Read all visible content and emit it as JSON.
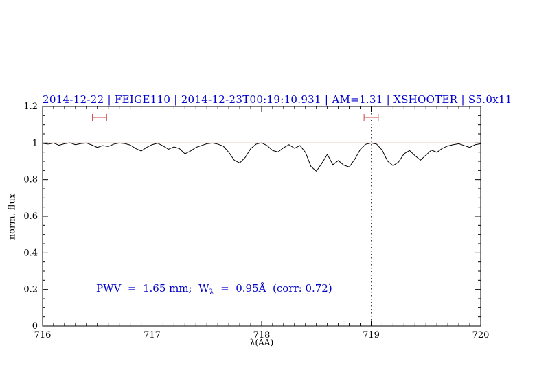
{
  "title": "2014-12-22 | FEIGE110 | 2014-12-23T00:19:10.931 | AM=1.31 | XSHOOTER | S5.0x11",
  "annotation": {
    "prefix": "PWV  =  1.65 mm;  W",
    "sub": "λ",
    "suffix": "  =  0.95Å  (corr: 0.72)"
  },
  "axes": {
    "xlabel": "λ(AA)",
    "ylabel": "norm. flux",
    "x_tick_labels": [
      "716",
      "717",
      "718",
      "719",
      "720"
    ],
    "y_tick_labels": [
      "0",
      "0.2",
      "0.4",
      "0.6",
      "0.8",
      "1",
      "1.2"
    ]
  },
  "colors": {
    "title_blue": "#0000cc",
    "spectrum_black": "#000000",
    "reference_red": "#b03030",
    "marker_red": "#cc4444",
    "dotted_line": "#404040"
  },
  "chart_data": {
    "type": "line",
    "title": "2014-12-22 | FEIGE110 | 2014-12-23T00:19:10.931 | AM=1.31 | XSHOOTER | S5.0x11",
    "xlabel": "λ(AA)",
    "ylabel": "norm. flux",
    "xlim": [
      716,
      720
    ],
    "ylim": [
      0,
      1.2
    ],
    "xticks": [
      716,
      717,
      718,
      719,
      720
    ],
    "yticks": [
      0,
      0.2,
      0.4,
      0.6,
      0.8,
      1,
      1.2
    ],
    "x_minor_step": 0.1,
    "y_minor_step": 0.05,
    "grid": false,
    "legend": "none",
    "series": [
      {
        "name": "normalized spectrum",
        "color": "#000000",
        "x_start": 716.0,
        "x_step": 0.05,
        "y": [
          0.998,
          0.994,
          1.0,
          0.988,
          0.996,
          1.001,
          0.991,
          0.997,
          1.0,
          0.989,
          0.976,
          0.986,
          0.981,
          0.994,
          1.0,
          0.997,
          0.989,
          0.97,
          0.956,
          0.976,
          0.991,
          0.999,
          0.984,
          0.966,
          0.979,
          0.969,
          0.941,
          0.956,
          0.976,
          0.986,
          0.996,
          1.0,
          0.994,
          0.983,
          0.949,
          0.906,
          0.891,
          0.921,
          0.969,
          0.994,
          1.001,
          0.986,
          0.959,
          0.951,
          0.974,
          0.991,
          0.971,
          0.986,
          0.949,
          0.872,
          0.846,
          0.889,
          0.938,
          0.881,
          0.904,
          0.879,
          0.869,
          0.911,
          0.964,
          0.993,
          1.0,
          0.994,
          0.961,
          0.901,
          0.876,
          0.896,
          0.941,
          0.959,
          0.931,
          0.906,
          0.934,
          0.961,
          0.949,
          0.971,
          0.984,
          0.991,
          0.996,
          0.986,
          0.976,
          0.991,
          0.996
        ]
      }
    ],
    "reference_line": {
      "y": 1.0,
      "color": "#b03030"
    },
    "vlines": [
      {
        "x": 717,
        "style": "dotted",
        "color": "#404040"
      },
      {
        "x": 719,
        "style": "dotted",
        "color": "#404040"
      }
    ],
    "range_markers": [
      {
        "x_center": 716.52,
        "half_width": 0.065,
        "y": 1.14,
        "color": "#cc4444"
      },
      {
        "x_center": 719.0,
        "half_width": 0.065,
        "y": 1.14,
        "color": "#cc4444"
      }
    ],
    "annotation": "PWV  =  1.65 mm;  W_λ  =  0.95Å  (corr: 0.72)"
  }
}
